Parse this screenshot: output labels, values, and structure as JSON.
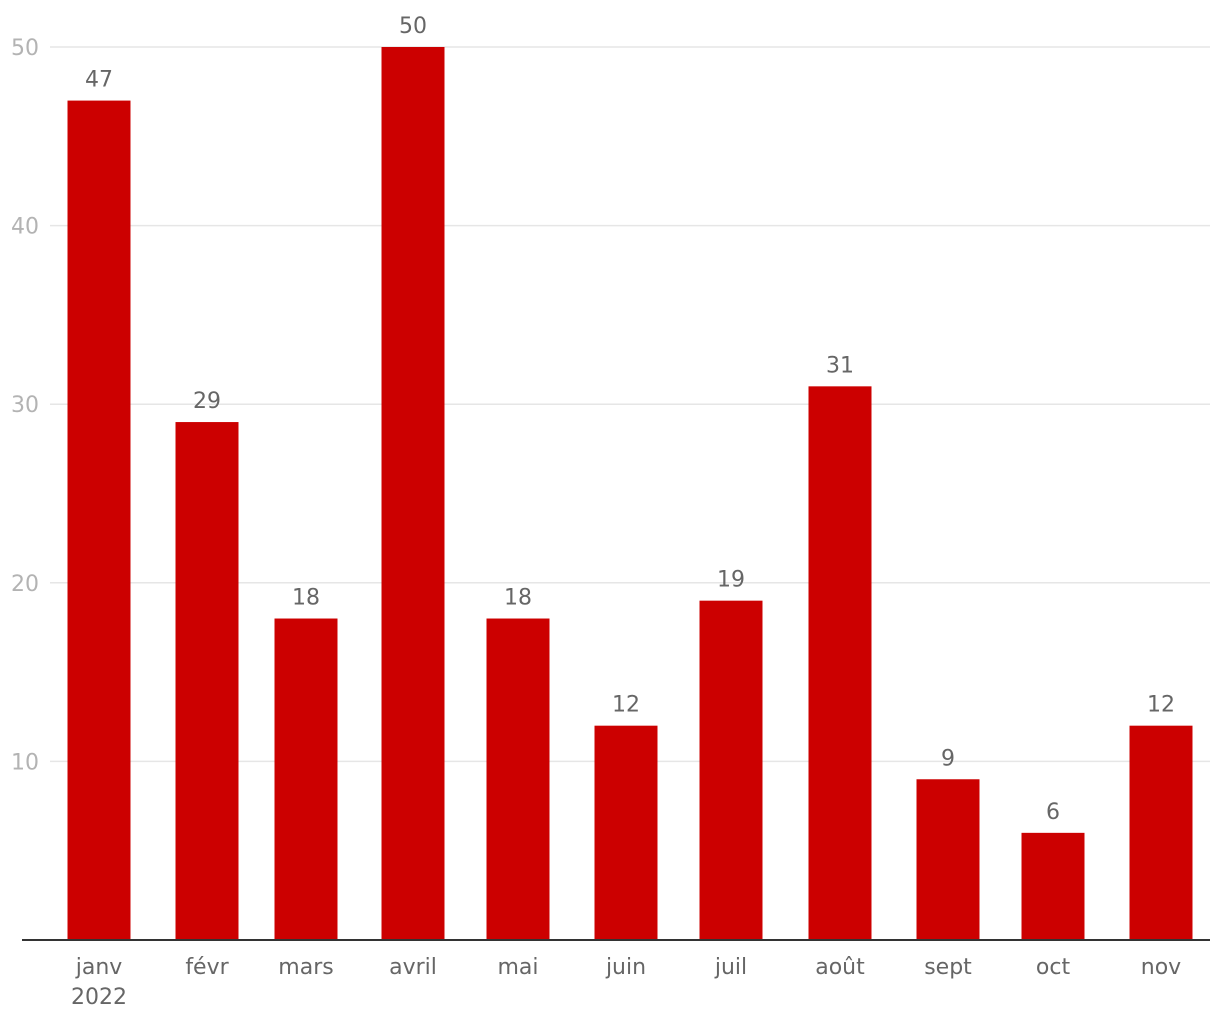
{
  "chart_data": {
    "type": "bar",
    "categories": [
      "janv",
      "févr",
      "mars",
      "avril",
      "mai",
      "juin",
      "juil",
      "août",
      "sept",
      "oct",
      "nov"
    ],
    "category_sublabels": [
      "2022",
      "",
      "",
      "",
      "",
      "",
      "",
      "",
      "",
      "",
      ""
    ],
    "values": [
      47,
      29,
      18,
      50,
      18,
      12,
      19,
      31,
      9,
      6,
      12
    ],
    "data_labels": [
      "47",
      "29",
      "18",
      "50",
      "18",
      "12",
      "19",
      "31",
      "9",
      "6",
      "12"
    ],
    "y_ticks": [
      10,
      20,
      30,
      40,
      50
    ],
    "y_tick_labels": [
      "10",
      "20",
      "30",
      "40",
      "50"
    ],
    "ylim": [
      0,
      50
    ],
    "grid": true,
    "legend": "none",
    "title": "",
    "xlabel": "",
    "ylabel": "",
    "colors": {
      "bar": "#cc0000",
      "grid": "#e6e6e6",
      "axis": "#333333",
      "y_tick_text": "#b3b3b3",
      "label_text": "#666666"
    }
  }
}
